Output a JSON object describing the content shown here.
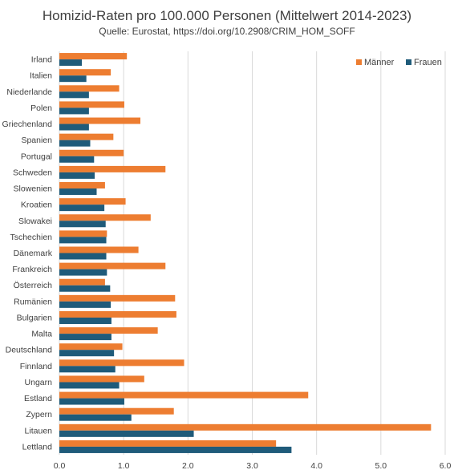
{
  "chart_data": {
    "type": "bar",
    "orientation": "horizontal",
    "title": "Homizid-Raten pro 100.000 Personen (Mittelwert 2014-2023)",
    "subtitle": "Quelle: Eurostat, https://doi.org/10.2908/CRIM_HOM_SOFF",
    "categories": [
      "Irland",
      "Italien",
      "Niederlande",
      "Polen",
      "Griechenland",
      "Spanien",
      "Portugal",
      "Schweden",
      "Slowenien",
      "Kroatien",
      "Slowakei",
      "Tschechien",
      "Dänemark",
      "Frankreich",
      "Österreich",
      "Rumänien",
      "Bulgarien",
      "Malta",
      "Deutschland",
      "Finnland",
      "Ungarn",
      "Estland",
      "Zypern",
      "Litauen",
      "Lettland"
    ],
    "series": [
      {
        "name": "Männer",
        "color": "#ED7D31",
        "values": [
          1.05,
          0.8,
          0.93,
          1.01,
          1.26,
          0.84,
          1.0,
          1.65,
          0.71,
          1.03,
          1.42,
          0.74,
          1.23,
          1.65,
          0.71,
          1.8,
          1.82,
          1.53,
          0.98,
          1.94,
          1.32,
          3.87,
          1.78,
          5.78,
          3.37
        ]
      },
      {
        "name": "Frauen",
        "color": "#1F5B7A",
        "values": [
          0.35,
          0.42,
          0.46,
          0.46,
          0.46,
          0.48,
          0.54,
          0.55,
          0.58,
          0.7,
          0.72,
          0.73,
          0.73,
          0.74,
          0.79,
          0.8,
          0.81,
          0.81,
          0.85,
          0.87,
          0.93,
          1.01,
          1.12,
          2.09,
          3.61
        ]
      }
    ],
    "xlim": [
      0,
      6
    ],
    "xticks": [
      "0.0",
      "1.0",
      "2.0",
      "3.0",
      "4.0",
      "5.0",
      "6.0"
    ],
    "grid": true,
    "legend_position": "top-right"
  }
}
